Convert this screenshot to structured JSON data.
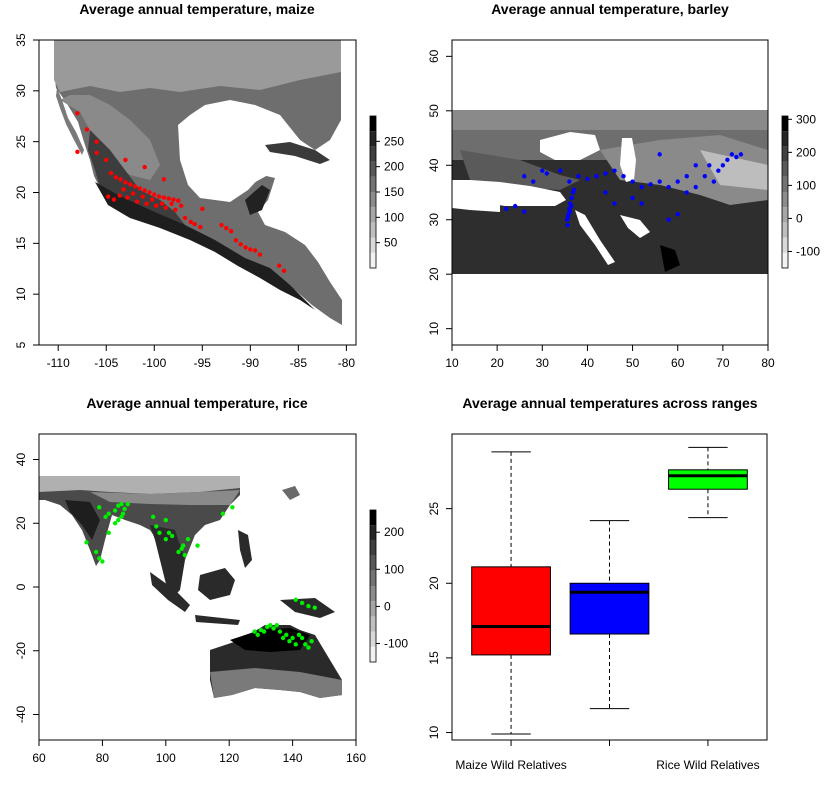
{
  "colors": {
    "maize_points": "#ff0000",
    "barley_points": "#0000ff",
    "rice_points": "#00ee00",
    "ocean": "#ffffff",
    "legend_shades": [
      "#f2f2f2",
      "#d9d9d9",
      "#bfbfbf",
      "#a6a6a6",
      "#8c8c8c",
      "#737373",
      "#595959",
      "#404040",
      "#262626",
      "#000000"
    ]
  },
  "chart_data": [
    {
      "type": "map",
      "title": "Average annual temperature, maize",
      "xlim": [
        -112,
        -79
      ],
      "ylim": [
        5,
        35
      ],
      "x_ticks": [
        -110,
        -105,
        -100,
        -95,
        -90,
        -85,
        -80
      ],
      "y_ticks": [
        5,
        10,
        15,
        20,
        25,
        30,
        35
      ],
      "legend": {
        "ticks": [
          50,
          100,
          150,
          200,
          250
        ],
        "range": [
          0,
          300
        ]
      },
      "points": [
        [
          -108,
          24
        ],
        [
          -106,
          23.9
        ],
        [
          -105,
          23.2
        ],
        [
          -104.5,
          21.9
        ],
        [
          -104,
          21.5
        ],
        [
          -103.5,
          21.3
        ],
        [
          -103,
          21
        ],
        [
          -102.5,
          20.8
        ],
        [
          -102,
          20.6
        ],
        [
          -101.5,
          20.4
        ],
        [
          -101,
          20.2
        ],
        [
          -100.5,
          20
        ],
        [
          -100,
          19.8
        ],
        [
          -99.5,
          19.6
        ],
        [
          -99,
          19.5
        ],
        [
          -98.5,
          19.4
        ],
        [
          -98,
          19.3
        ],
        [
          -97.5,
          19.2
        ],
        [
          -104.8,
          19.6
        ],
        [
          -104.2,
          19.3
        ],
        [
          -103.6,
          19.7
        ],
        [
          -103.2,
          20.3
        ],
        [
          -102.8,
          19.5
        ],
        [
          -102.2,
          19.9
        ],
        [
          -101.8,
          19.1
        ],
        [
          -101.2,
          19.6
        ],
        [
          -100.8,
          18.9
        ],
        [
          -100.2,
          19.3
        ],
        [
          -99.8,
          18.7
        ],
        [
          -99.2,
          18.9
        ],
        [
          -98.8,
          18.5
        ],
        [
          -98.2,
          18.9
        ],
        [
          -97.8,
          18.3
        ],
        [
          -97.2,
          18.7
        ],
        [
          -96.8,
          17.5
        ],
        [
          -96.2,
          17.1
        ],
        [
          -95.8,
          16.9
        ],
        [
          -95.2,
          16.6
        ],
        [
          -93,
          16.8
        ],
        [
          -92.5,
          16.5
        ],
        [
          -91.5,
          15.3
        ],
        [
          -91,
          14.9
        ],
        [
          -90.5,
          14.6
        ],
        [
          -90,
          14.4
        ],
        [
          -89.5,
          14.3
        ],
        [
          -89,
          13.9
        ],
        [
          -87,
          12.8
        ],
        [
          -86.5,
          12.3
        ],
        [
          -108,
          27.8
        ],
        [
          -107,
          26.2
        ],
        [
          -106,
          25
        ],
        [
          -103,
          23.2
        ],
        [
          -101,
          22.5
        ],
        [
          -99,
          21.3
        ],
        [
          -95,
          18.4
        ],
        [
          -92,
          16.2
        ]
      ]
    },
    {
      "type": "map",
      "title": "Average annual temperature, barley",
      "xlim": [
        10,
        80
      ],
      "ylim": [
        7,
        63
      ],
      "x_ticks": [
        10,
        20,
        30,
        40,
        50,
        60,
        70,
        80
      ],
      "y_ticks": [
        10,
        20,
        30,
        40,
        50,
        60
      ],
      "legend": {
        "ticks": [
          -100,
          0,
          100,
          200,
          300
        ],
        "range": [
          -150,
          310
        ]
      },
      "points": [
        [
          22,
          32
        ],
        [
          24,
          32.5
        ],
        [
          26,
          31.5
        ],
        [
          28,
          37
        ],
        [
          31,
          38.5
        ],
        [
          34,
          39
        ],
        [
          36,
          37
        ],
        [
          38,
          38
        ],
        [
          40,
          37.5
        ],
        [
          42,
          38
        ],
        [
          44,
          38.5
        ],
        [
          46,
          39
        ],
        [
          35.5,
          30
        ],
        [
          35.8,
          31
        ],
        [
          36,
          32
        ],
        [
          36.2,
          33
        ],
        [
          36.5,
          34
        ],
        [
          36.8,
          35
        ],
        [
          35.6,
          29
        ],
        [
          35.7,
          30.5
        ],
        [
          36.1,
          31.5
        ],
        [
          36.4,
          32.5
        ],
        [
          37,
          35.5
        ],
        [
          48,
          38
        ],
        [
          50,
          37
        ],
        [
          52,
          36
        ],
        [
          54,
          36.5
        ],
        [
          56,
          37
        ],
        [
          58,
          36
        ],
        [
          60,
          37
        ],
        [
          62,
          38
        ],
        [
          64,
          36
        ],
        [
          66,
          38
        ],
        [
          68,
          37
        ],
        [
          70,
          40
        ],
        [
          71,
          41
        ],
        [
          72,
          42
        ],
        [
          73,
          41.5
        ],
        [
          74,
          42
        ],
        [
          67,
          40
        ],
        [
          69,
          39
        ],
        [
          50,
          34
        ],
        [
          52,
          33
        ],
        [
          46,
          33
        ],
        [
          44,
          35
        ],
        [
          30,
          39
        ],
        [
          26,
          38
        ],
        [
          58,
          30
        ],
        [
          60,
          31
        ],
        [
          56,
          42
        ],
        [
          64,
          40
        ],
        [
          62,
          35
        ]
      ]
    },
    {
      "type": "map",
      "title": "Average annual temperature, rice",
      "xlim": [
        60,
        160
      ],
      "ylim": [
        -48,
        48
      ],
      "x_ticks": [
        60,
        80,
        100,
        120,
        140,
        160
      ],
      "y_ticks": [
        -40,
        -20,
        0,
        20,
        40
      ],
      "legend": {
        "ticks": [
          -100,
          0,
          100,
          200
        ],
        "range": [
          -150,
          260
        ]
      },
      "points": [
        [
          79,
          9
        ],
        [
          80,
          8
        ],
        [
          78,
          11
        ],
        [
          82,
          17
        ],
        [
          84,
          20
        ],
        [
          85,
          21
        ],
        [
          86,
          22
        ],
        [
          86.5,
          23
        ],
        [
          84,
          24
        ],
        [
          86,
          26
        ],
        [
          88,
          26
        ],
        [
          85,
          25.5
        ],
        [
          87,
          24.5
        ],
        [
          81,
          22
        ],
        [
          79,
          25
        ],
        [
          82,
          23
        ],
        [
          97,
          19
        ],
        [
          98,
          17
        ],
        [
          100,
          15
        ],
        [
          101,
          17
        ],
        [
          102,
          16
        ],
        [
          104,
          11
        ],
        [
          105,
          12
        ],
        [
          106,
          10
        ],
        [
          105.5,
          13
        ],
        [
          107,
          15
        ],
        [
          110,
          13
        ],
        [
          96,
          22
        ],
        [
          100,
          21
        ],
        [
          128,
          -14
        ],
        [
          129,
          -15
        ],
        [
          130,
          -13.5
        ],
        [
          131,
          -14
        ],
        [
          132,
          -12.5
        ],
        [
          133,
          -12
        ],
        [
          134,
          -13
        ],
        [
          135,
          -12
        ],
        [
          136,
          -14
        ],
        [
          137,
          -16
        ],
        [
          138,
          -15
        ],
        [
          139,
          -17
        ],
        [
          140,
          -16
        ],
        [
          141,
          -18
        ],
        [
          142,
          -15
        ],
        [
          143,
          -16
        ],
        [
          144,
          -18
        ],
        [
          145,
          -19
        ],
        [
          146,
          -17
        ],
        [
          141,
          -4
        ],
        [
          143,
          -5
        ],
        [
          145,
          -6
        ],
        [
          147,
          -6.5
        ],
        [
          121,
          25
        ],
        [
          118,
          23
        ],
        [
          75,
          14
        ]
      ]
    },
    {
      "type": "box",
      "title": "Average annual temperatures across ranges",
      "xlabel": "",
      "ylabel": "",
      "ylim": [
        9.5,
        30
      ],
      "y_ticks": [
        10,
        15,
        20,
        25
      ],
      "category_labels": [
        "Maize Wild Relatives",
        "",
        "Rice Wild Relatives"
      ],
      "boxes": [
        {
          "whisker_low": 9.9,
          "q1": 15.2,
          "median": 17.1,
          "q3": 21.1,
          "whisker_high": 28.8,
          "color": "#ff0000"
        },
        {
          "whisker_low": 11.6,
          "q1": 16.6,
          "median": 19.4,
          "q3": 20.0,
          "whisker_high": 24.2,
          "color": "#0000ff"
        },
        {
          "whisker_low": 24.4,
          "q1": 26.3,
          "median": 27.2,
          "q3": 27.6,
          "whisker_high": 29.1,
          "color": "#00ff00"
        }
      ]
    }
  ]
}
